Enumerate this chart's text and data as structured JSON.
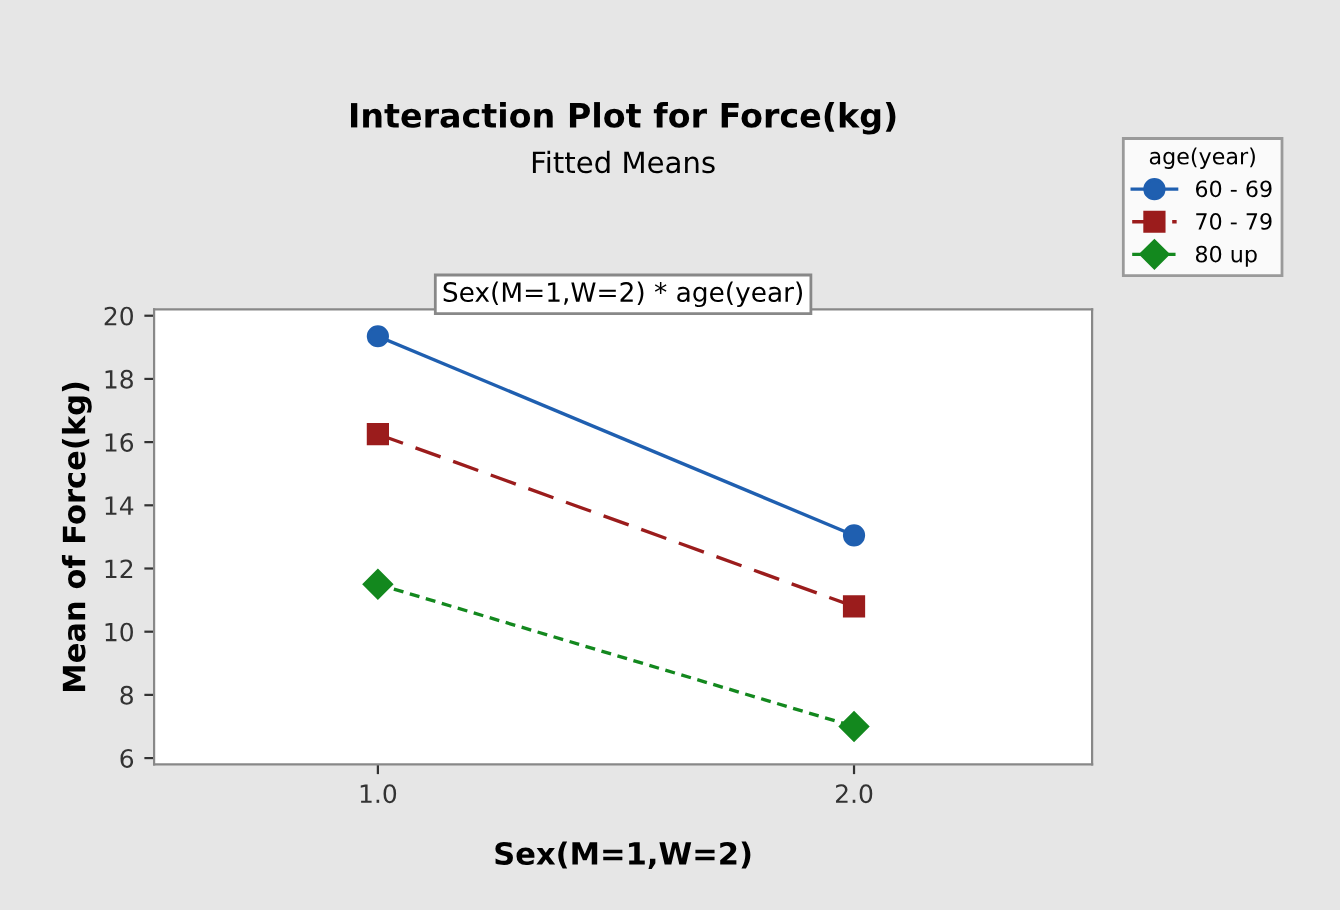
{
  "chart_data": {
    "type": "line",
    "title": "Interaction Plot for Force(kg)",
    "subtitle": "Fitted Means",
    "xlabel": "Sex(M=1,W=2)",
    "ylabel": "Mean of Force(kg)",
    "legend_title": "age(year)",
    "legend": "top right",
    "grid": false,
    "annotations": [
      "Sex(M=1,W=2) * age(year)"
    ],
    "x": [
      1,
      2
    ],
    "xlim": [
      0.53,
      2.5
    ],
    "xticks": [
      {
        "value": 1,
        "label": "1.0"
      },
      {
        "value": 2,
        "label": "2.0"
      }
    ],
    "ylim": [
      5.8,
      20.2
    ],
    "yticks": [
      6,
      8,
      10,
      12,
      14,
      16,
      18,
      20
    ],
    "series": [
      {
        "name": "60 - 69",
        "color": "#1f5fb0",
        "values": [
          19.35,
          13.05
        ],
        "marker": "circle",
        "line_style": "solid"
      },
      {
        "name": "70 - 79",
        "color": "#9b1c1c",
        "values": [
          16.25,
          10.8
        ],
        "marker": "square",
        "line_style": "dashed"
      },
      {
        "name": "80 up",
        "color": "#13881e",
        "values": [
          11.5,
          7.0
        ],
        "marker": "diamond",
        "line_style": "dotted"
      }
    ]
  }
}
